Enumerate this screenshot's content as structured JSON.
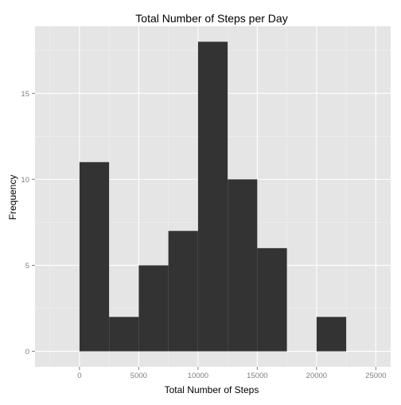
{
  "chart_data": {
    "type": "bar",
    "subtype": "histogram",
    "title": "Total Number of Steps per Day",
    "xlabel": "Total Number of Steps",
    "ylabel": "Frequency",
    "bin_width": 2500,
    "bins": [
      {
        "x_start": 0,
        "x_end": 2500,
        "count": 11
      },
      {
        "x_start": 2500,
        "x_end": 5000,
        "count": 2
      },
      {
        "x_start": 5000,
        "x_end": 7500,
        "count": 5
      },
      {
        "x_start": 7500,
        "x_end": 10000,
        "count": 7
      },
      {
        "x_start": 10000,
        "x_end": 12500,
        "count": 18
      },
      {
        "x_start": 12500,
        "x_end": 15000,
        "count": 10
      },
      {
        "x_start": 15000,
        "x_end": 17500,
        "count": 6
      },
      {
        "x_start": 17500,
        "x_end": 20000,
        "count": 0
      },
      {
        "x_start": 20000,
        "x_end": 22500,
        "count": 2
      }
    ],
    "xlim": [
      -3750,
      26250
    ],
    "ylim": [
      -0.9,
      18.9
    ],
    "x_ticks": [
      0,
      5000,
      10000,
      15000,
      20000,
      25000
    ],
    "x_tick_labels": [
      "0",
      "5000",
      "10000",
      "15000",
      "20000",
      "25000"
    ],
    "y_ticks": [
      0,
      5,
      10,
      15
    ],
    "y_tick_labels": [
      "0",
      "5",
      "10",
      "15"
    ],
    "grid": true,
    "colors": {
      "bar_fill": "#333333",
      "panel_background": "#e5e5e5",
      "grid_major": "#ffffff",
      "grid_minor": "#f2f2f2",
      "tick_label": "#7f7f7f"
    }
  }
}
